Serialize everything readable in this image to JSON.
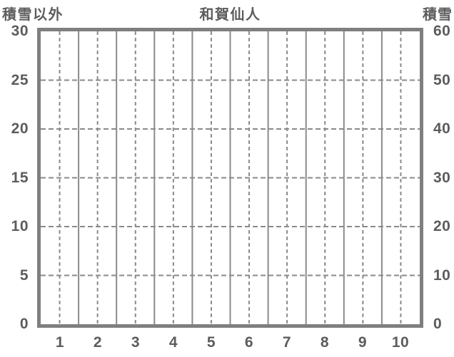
{
  "chart": {
    "title": "和賀仙人",
    "top_left_label": "積雪以外",
    "top_right_label": "積雪"
  },
  "chart_data": {
    "type": "line",
    "title": "和賀仙人",
    "categories": [
      1,
      2,
      3,
      4,
      5,
      6,
      7,
      8,
      9,
      10
    ],
    "series": [],
    "plot_empty": true,
    "left_axis": {
      "label": "積雪以外",
      "range": [
        0,
        30
      ],
      "ticks_top_to_bottom": [
        "30",
        "25",
        "20",
        "15",
        "10",
        "5",
        "0"
      ]
    },
    "right_axis": {
      "label": "積雪",
      "range": [
        0,
        60
      ],
      "ticks_top_to_bottom": [
        "60",
        "50",
        "40",
        "30",
        "20",
        "10",
        "0"
      ]
    },
    "x_axis": {
      "ticks": [
        "1",
        "2",
        "3",
        "4",
        "5",
        "6",
        "7",
        "8",
        "9",
        "10"
      ]
    },
    "grid": {
      "vertical_solid_at_category_boundaries": true,
      "vertical_dashed_at_category_centers": true,
      "horizontal_dashed_at_value_ticks": true
    },
    "legend_position": "none"
  },
  "colors": {
    "text": "#5c5c5c",
    "plot_border": "#7f7f7f",
    "gridline": "#8a8a8a",
    "background": "#ffffff"
  }
}
